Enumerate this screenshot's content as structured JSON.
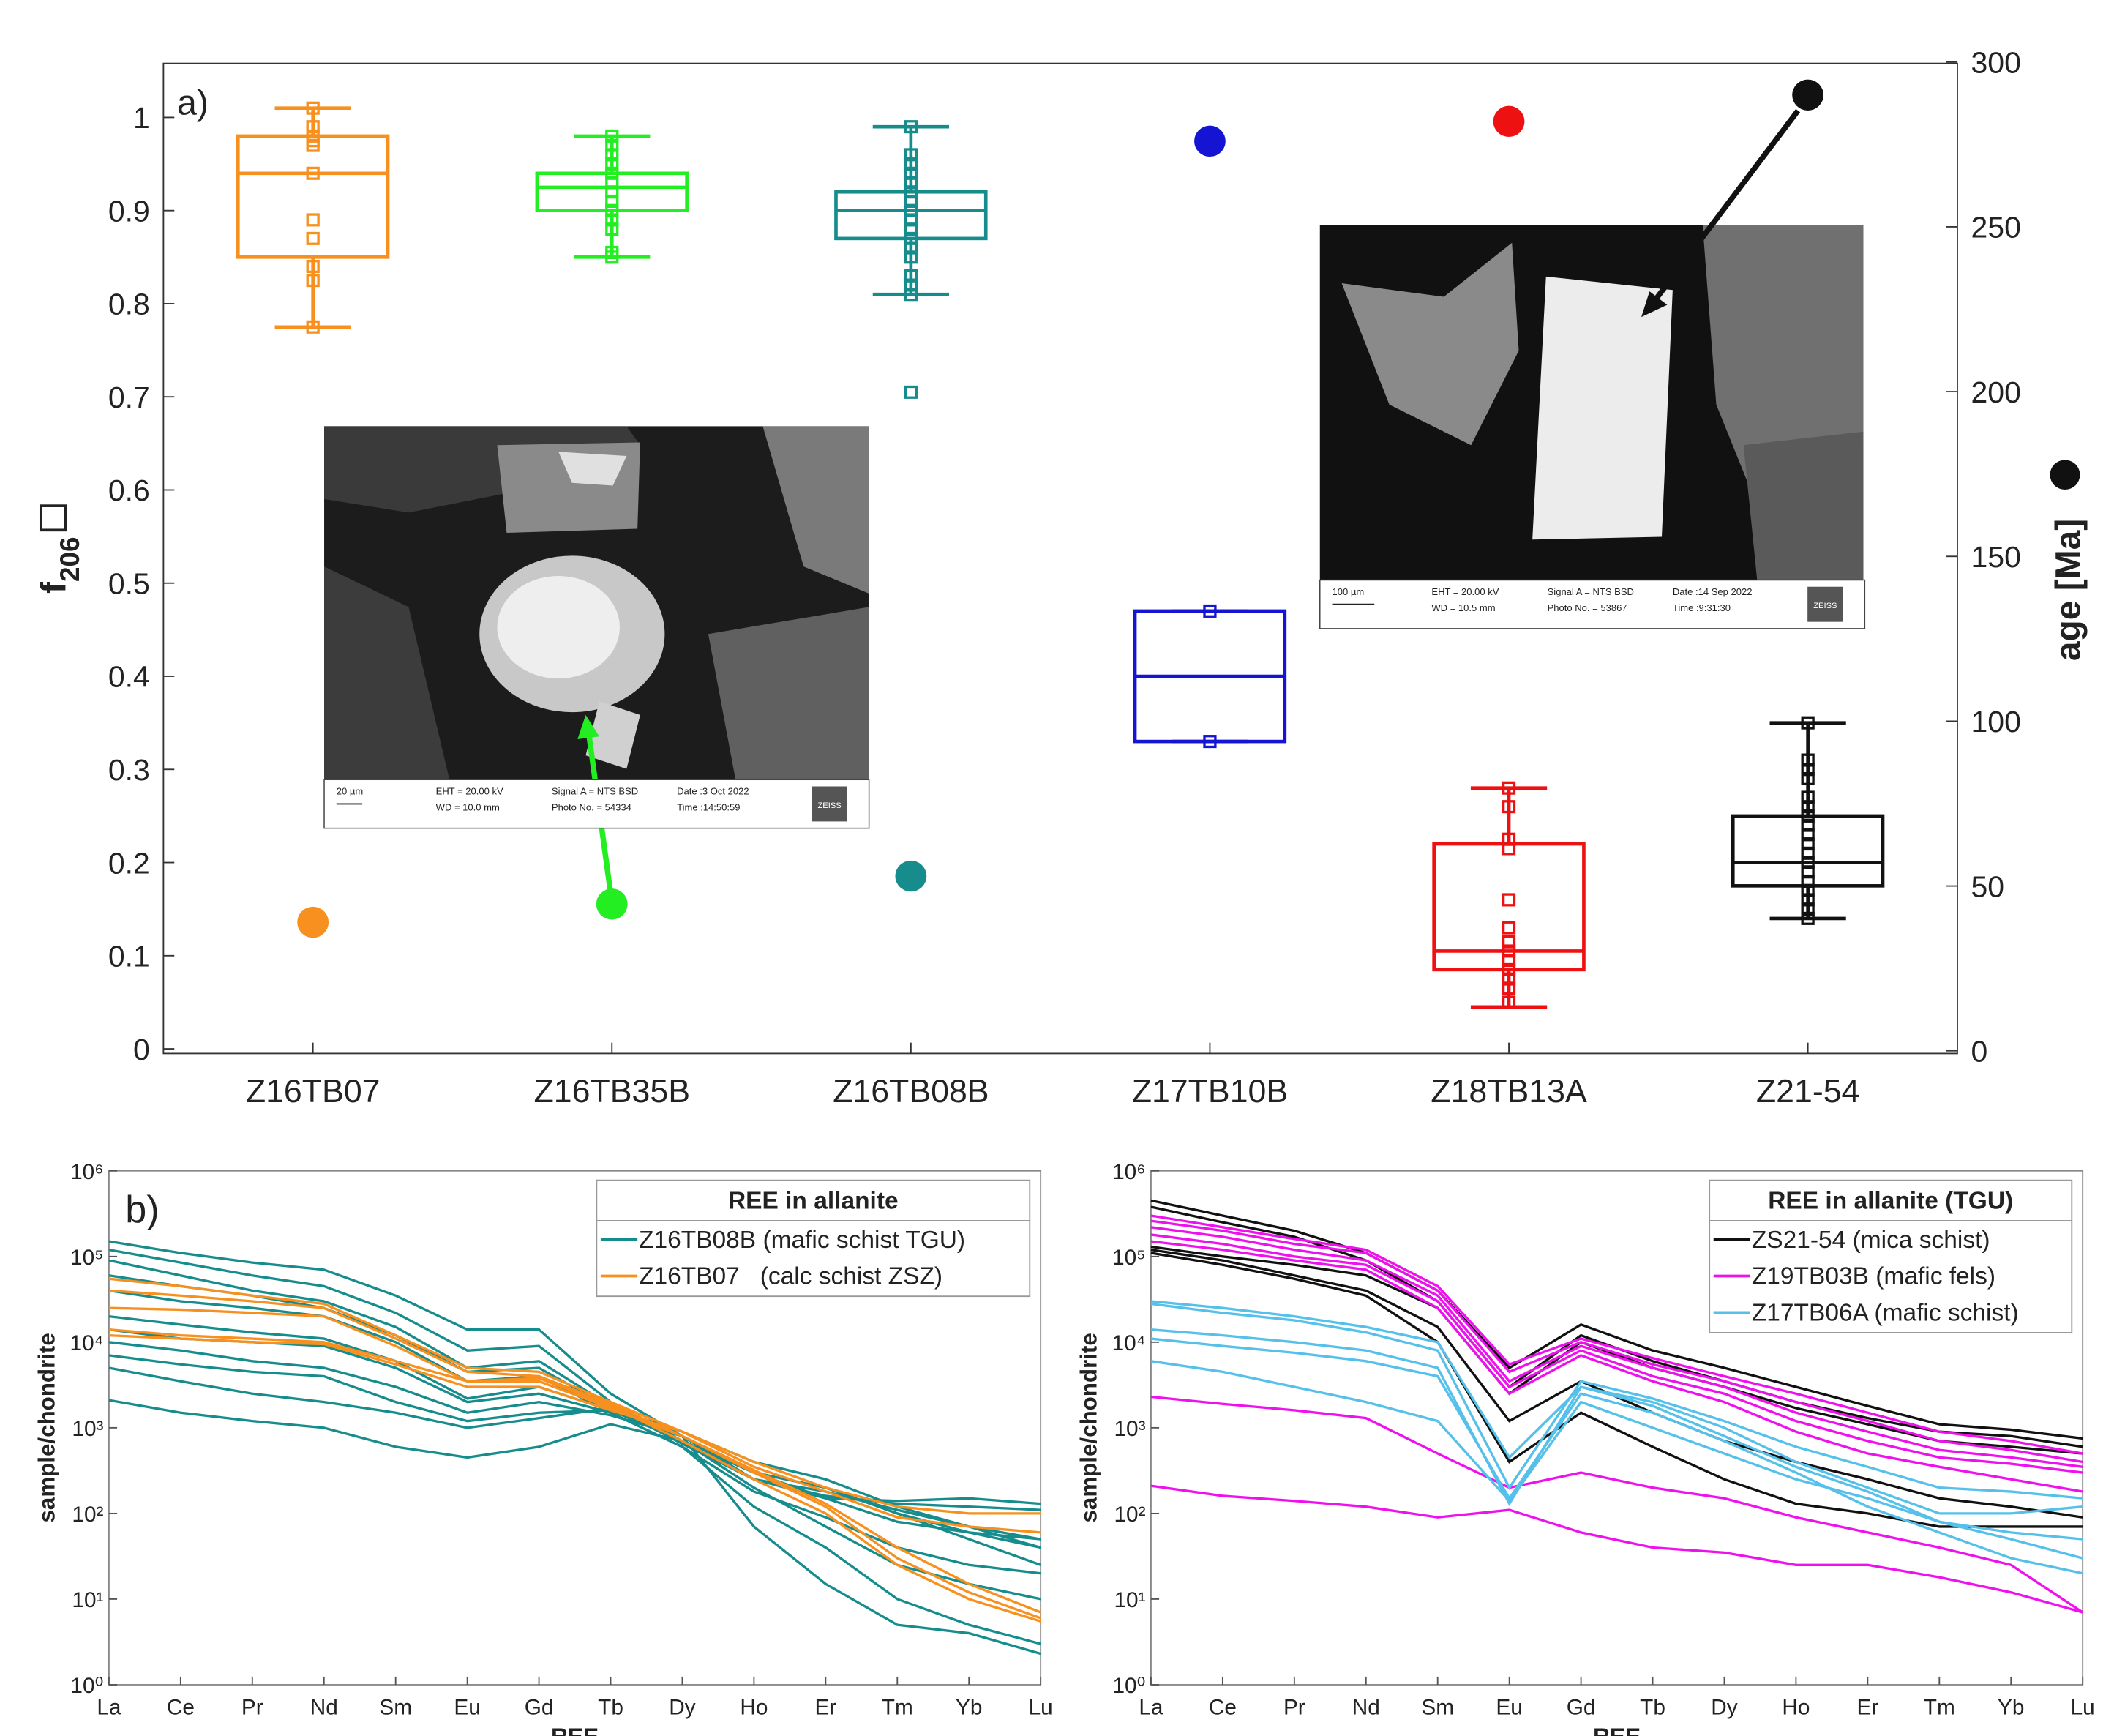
{
  "chart_data": [
    {
      "type": "box",
      "panel_label": "a)",
      "ylabel": "f",
      "ylabel_sub": "206",
      "y2label": "age [Ma]",
      "categories": [
        "Z16TB07",
        "Z16TB35B",
        "Z16TB08B",
        "Z17TB10B",
        "Z18TB13A",
        "Z21-54"
      ],
      "colors": [
        "#f7901e",
        "#22ee22",
        "#168c8c",
        "#1414d2",
        "#ee1111",
        "#111111"
      ],
      "boxes": [
        {
          "whisker_low": 0.775,
          "q1": 0.85,
          "median": 0.94,
          "q3": 0.98,
          "whisker_high": 1.01,
          "points": [
            1.01,
            0.99,
            0.98,
            0.975,
            0.97,
            0.94,
            0.89,
            0.87,
            0.84,
            0.825,
            0.775
          ]
        },
        {
          "whisker_low": 0.85,
          "q1": 0.9,
          "median": 0.925,
          "q3": 0.94,
          "whisker_high": 0.98,
          "points": [
            0.98,
            0.97,
            0.96,
            0.95,
            0.94,
            0.93,
            0.92,
            0.91,
            0.9,
            0.89,
            0.88,
            0.855,
            0.85
          ]
        },
        {
          "whisker_low": 0.81,
          "q1": 0.87,
          "median": 0.9,
          "q3": 0.92,
          "whisker_high": 0.99,
          "points": [
            0.99,
            0.96,
            0.95,
            0.94,
            0.93,
            0.92,
            0.91,
            0.9,
            0.89,
            0.88,
            0.87,
            0.86,
            0.85,
            0.83,
            0.82,
            0.81,
            0.705
          ]
        },
        {
          "whisker_low": 0.33,
          "q1": 0.33,
          "median": 0.4,
          "q3": 0.47,
          "whisker_high": 0.47,
          "points": [
            0.47,
            0.33
          ]
        },
        {
          "whisker_low": 0.045,
          "q1": 0.085,
          "median": 0.105,
          "q3": 0.22,
          "whisker_high": 0.28,
          "points": [
            0.28,
            0.26,
            0.225,
            0.215,
            0.16,
            0.13,
            0.115,
            0.105,
            0.095,
            0.085,
            0.075,
            0.065,
            0.05
          ]
        },
        {
          "whisker_low": 0.14,
          "q1": 0.175,
          "median": 0.2,
          "q3": 0.25,
          "whisker_high": 0.35,
          "points": [
            0.35,
            0.31,
            0.3,
            0.29,
            0.27,
            0.26,
            0.25,
            0.24,
            0.23,
            0.22,
            0.21,
            0.2,
            0.19,
            0.18,
            0.17,
            0.16,
            0.15,
            0.14
          ]
        }
      ],
      "ages": [
        39,
        44.5,
        53,
        276,
        282,
        290
      ],
      "ylim": [
        -0.005,
        1.058
      ],
      "yticks": [
        0,
        0.1,
        0.2,
        0.3,
        0.4,
        0.5,
        0.6,
        0.7,
        0.8,
        0.9,
        1
      ],
      "y2lim": [
        0,
        300
      ],
      "y2ticks": [
        0,
        50,
        100,
        150,
        200,
        250,
        300
      ],
      "insets": [
        {
          "scale": "20 µm",
          "eht": "EHT = 20.00 kV",
          "wd": "WD = 10.0 mm",
          "signal": "Signal A = NTS BSD",
          "photo": "Photo No. = 54334",
          "date": "Date :3 Oct 2022",
          "time": "Time :14:50:59",
          "logo": "ZEISS"
        },
        {
          "scale": "100 µm",
          "eht": "EHT = 20.00 kV",
          "wd": "WD = 10.5 mm",
          "signal": "Signal A = NTS BSD",
          "photo": "Photo No. = 53867",
          "date": "Date :14 Sep 2022",
          "time": "Time :9:31:30",
          "logo": "ZEISS"
        }
      ]
    },
    {
      "type": "line",
      "log": true,
      "panel_label": "b)",
      "ylabel": "sample/chondrite",
      "xlabel": "REE",
      "legend": "upper right",
      "legend_title": "REE in allanite",
      "categories": [
        "La",
        "Ce",
        "Pr",
        "Nd",
        "Sm",
        "Eu",
        "Gd",
        "Tb",
        "Dy",
        "Ho",
        "Er",
        "Tm",
        "Yb",
        "Lu"
      ],
      "ylim": [
        1,
        1000000
      ],
      "yticks": [
        {
          "value": 1,
          "label": "10⁰"
        },
        {
          "value": 10,
          "label": "10¹"
        },
        {
          "value": 100,
          "label": "10²"
        },
        {
          "value": 1000,
          "label": "10³"
        },
        {
          "value": 10000,
          "label": "10⁴"
        },
        {
          "value": 100000,
          "label": "10⁵"
        },
        {
          "value": 1000000,
          "label": "10⁶"
        }
      ],
      "series": [
        {
          "name": "Z16TB08B (mafic schist TGU)",
          "color": "#168c8c",
          "values": [
            [
              150000,
              110000,
              85000,
              70000,
              35000,
              14000,
              14000,
              2500,
              800,
              250,
              150,
              140,
              150,
              130
            ],
            [
              120000,
              85000,
              60000,
              45000,
              22000,
              8000,
              9000,
              2000,
              700,
              250,
              160,
              130,
              120,
              110
            ],
            [
              90000,
              60000,
              40000,
              30000,
              15000,
              5000,
              6000,
              1800,
              650,
              250,
              180,
              110,
              70,
              50
            ],
            [
              60000,
              45000,
              35000,
              25000,
              12000,
              4500,
              5000,
              1700,
              700,
              300,
              200,
              100,
              60,
              40
            ],
            [
              40000,
              30000,
              25000,
              20000,
              10000,
              3500,
              4000,
              1500,
              600,
              180,
              90,
              40,
              25,
              20
            ],
            [
              20000,
              16000,
              13000,
              11000,
              6000,
              2200,
              3000,
              1600,
              700,
              200,
              70,
              25,
              15,
              10
            ],
            [
              14000,
              11000,
              10000,
              9000,
              5000,
              2000,
              2500,
              1500,
              600,
              120,
              40,
              10,
              5,
              3
            ],
            [
              10000,
              8000,
              6000,
              5000,
              3000,
              1500,
              2000,
              1400,
              800,
              300,
              150,
              80,
              60,
              50
            ],
            [
              7000,
              5500,
              4500,
              4000,
              2000,
              1200,
              1500,
              1600,
              800,
              70,
              15,
              5,
              4,
              2.3
            ],
            [
              5000,
              3500,
              2500,
              2000,
              1500,
              1000,
              1300,
              1700,
              900,
              400,
              250,
              120,
              70,
              40
            ],
            [
              2100,
              1500,
              1200,
              1000,
              600,
              450,
              600,
              1100,
              700,
              300,
              200,
              100,
              50,
              25
            ]
          ]
        },
        {
          "name": "Z16TB07   (calc schist ZSZ)",
          "color": "#f7901e",
          "values": [
            [
              55000,
              45000,
              35000,
              28000,
              12000,
              5000,
              4500,
              2000,
              900,
              350,
              180,
              90,
              70,
              60
            ],
            [
              40000,
              35000,
              30000,
              25000,
              11000,
              4500,
              4000,
              1900,
              800,
              300,
              120,
              30,
              12,
              6
            ],
            [
              25000,
              24000,
              22000,
              20000,
              9000,
              3500,
              3800,
              1800,
              700,
              250,
              100,
              25,
              10,
              5.5
            ],
            [
              14000,
              12000,
              11000,
              10000,
              6000,
              3500,
              3500,
              1700,
              800,
              320,
              130,
              40,
              15,
              7
            ],
            [
              12000,
              11000,
              10000,
              9500,
              5500,
              3000,
              3000,
              1600,
              900,
              400,
              200,
              120,
              100,
              100
            ]
          ]
        }
      ]
    },
    {
      "type": "line",
      "log": true,
      "ylabel": "sample/chondrite",
      "xlabel": "REE",
      "legend": "upper right",
      "legend_title": "REE in allanite (TGU)",
      "categories": [
        "La",
        "Ce",
        "Pr",
        "Nd",
        "Sm",
        "Eu",
        "Gd",
        "Tb",
        "Dy",
        "Ho",
        "Er",
        "Tm",
        "Yb",
        "Lu"
      ],
      "ylim": [
        1,
        1000000
      ],
      "yticks": [
        {
          "value": 1,
          "label": "10⁰"
        },
        {
          "value": 10,
          "label": "10¹"
        },
        {
          "value": 100,
          "label": "10²"
        },
        {
          "value": 1000,
          "label": "10³"
        },
        {
          "value": 10000,
          "label": "10⁴"
        },
        {
          "value": 100000,
          "label": "10⁵"
        },
        {
          "value": 1000000,
          "label": "10⁶"
        }
      ],
      "series": [
        {
          "name": "ZS21-54 (mica schist)",
          "color": "#111111",
          "values": [
            [
              450000,
              300000,
              200000,
              110000,
              40000,
              5000,
              16000,
              8000,
              5000,
              3000,
              1800,
              1100,
              950,
              750
            ],
            [
              380000,
              250000,
              170000,
              90000,
              30000,
              3000,
              12000,
              6000,
              3500,
              2000,
              1300,
              900,
              800,
              600
            ],
            [
              130000,
              100000,
              80000,
              60000,
              25000,
              2500,
              10000,
              5000,
              3000,
              1700,
              1100,
              700,
              600,
              500
            ],
            [
              120000,
              90000,
              60000,
              40000,
              15000,
              1200,
              3500,
              1500,
              700,
              400,
              250,
              150,
              120,
              90
            ],
            [
              110000,
              80000,
              55000,
              35000,
              10000,
              400,
              1500,
              600,
              250,
              130,
              100,
              70,
              70,
              70
            ]
          ]
        },
        {
          "name": "Z19TB03B (mafic fels)",
          "color": "#ee11ee",
          "values": [
            [
              300000,
              220000,
              160000,
              120000,
              45000,
              5500,
              11000,
              6500,
              4000,
              2500,
              1500,
              900,
              700,
              500
            ],
            [
              260000,
              200000,
              140000,
              110000,
              40000,
              4500,
              10000,
              5500,
              3500,
              2000,
              1200,
              700,
              550,
              400
            ],
            [
              220000,
              170000,
              120000,
              90000,
              35000,
              3500,
              9000,
              5000,
              3000,
              1500,
              900,
              550,
              450,
              350
            ],
            [
              180000,
              140000,
              100000,
              80000,
              30000,
              3000,
              8000,
              4000,
              2500,
              1200,
              700,
              450,
              380,
              300
            ],
            [
              150000,
              120000,
              90000,
              70000,
              25000,
              2500,
              7000,
              3500,
              2000,
              900,
              500,
              350,
              250,
              180
            ],
            [
              2300,
              1900,
              1600,
              1300,
              500,
              200,
              300,
              200,
              150,
              90,
              60,
              40,
              25,
              7
            ],
            [
              210,
              160,
              140,
              120,
              90,
              110,
              60,
              40,
              35,
              25,
              25,
              18,
              12,
              7
            ]
          ]
        },
        {
          "name": "Z17TB06A (mafic schist)",
          "color": "#55c0ea",
          "values": [
            [
              30000,
              25000,
              20000,
              15000,
              10000,
              450,
              3000,
              2000,
              1000,
              400,
              200,
              100,
              100,
              120
            ],
            [
              28000,
              22000,
              18000,
              13000,
              8000,
              200,
              3500,
              2200,
              1200,
              600,
              350,
              200,
              180,
              150
            ],
            [
              14000,
              12000,
              10000,
              8000,
              5000,
              130,
              3000,
              1800,
              800,
              350,
              180,
              80,
              50,
              30
            ],
            [
              11000,
              9000,
              7500,
              6000,
              4000,
              150,
              2500,
              1500,
              700,
              300,
              120,
              60,
              30,
              20
            ],
            [
              6000,
              4500,
              3000,
              2000,
              1200,
              140,
              2000,
              1000,
              500,
              250,
              150,
              80,
              60,
              50
            ]
          ]
        }
      ]
    }
  ]
}
